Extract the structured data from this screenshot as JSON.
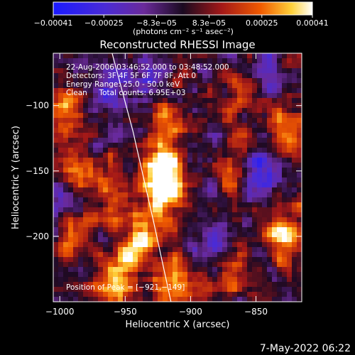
{
  "chart_data": {
    "type": "heatmap",
    "title": "Reconstructed RHESSI Image",
    "xlabel": "Heliocentric X (arcsec)",
    "ylabel": "Heliocentric Y (arcsec)",
    "xlim": [
      -1005,
      -815
    ],
    "ylim": [
      -250,
      -60
    ],
    "x_ticks": [
      {
        "value": -1000,
        "label": "−1000"
      },
      {
        "value": -950,
        "label": "−950"
      },
      {
        "value": -900,
        "label": "−900"
      },
      {
        "value": -850,
        "label": "−850"
      }
    ],
    "y_ticks": [
      {
        "value": -100,
        "label": "−100"
      },
      {
        "value": -150,
        "label": "−150"
      },
      {
        "value": -200,
        "label": "−200"
      }
    ],
    "colorbar": {
      "range": [
        -0.00041,
        0.00041
      ],
      "ticks": [
        {
          "value": -0.00041,
          "label": "−0.00041"
        },
        {
          "value": -0.00025,
          "label": "−0.00025"
        },
        {
          "value": -8.3e-05,
          "label": "−8.3e−05"
        },
        {
          "value": 8.3e-05,
          "label": "8.3e−05"
        },
        {
          "value": 0.00025,
          "label": "0.00025"
        },
        {
          "value": 0.00041,
          "label": "0.00041"
        }
      ],
      "unit_label": "(photons cm⁻² s⁻¹ asec⁻²)"
    },
    "annotations": [
      "22-Aug-2006 03:46:52.000 to 03:48:52.000",
      "Detectors: 3F 4F 5F 6F 7F 8F, Att 0",
      "Energy Range: 25.0 - 50.0 keV",
      "Clean     Total counts: 6.95E+03"
    ],
    "peak_label": "Position of Peak = [−921,−149]",
    "peak": [
      -921,
      -149
    ],
    "limb": [
      [
        -960,
        -60
      ],
      [
        -944,
        -120
      ],
      [
        -928,
        -190
      ],
      [
        -915,
        -250
      ]
    ],
    "hot_spots": [
      {
        "x": -921,
        "y": -149,
        "v": 1.0
      },
      {
        "x": -925,
        "y": -168,
        "v": 0.85
      },
      {
        "x": -918,
        "y": -110,
        "v": 0.7
      },
      {
        "x": -938,
        "y": -205,
        "v": 0.75
      },
      {
        "x": -912,
        "y": -238,
        "v": 0.85
      },
      {
        "x": -955,
        "y": -232,
        "v": 0.8
      },
      {
        "x": -995,
        "y": -110,
        "v": 0.7
      },
      {
        "x": -985,
        "y": -150,
        "v": 0.6
      },
      {
        "x": -990,
        "y": -200,
        "v": 0.55
      },
      {
        "x": -855,
        "y": -90,
        "v": 0.55
      },
      {
        "x": -825,
        "y": -120,
        "v": 0.7
      },
      {
        "x": -830,
        "y": -200,
        "v": 0.85
      },
      {
        "x": -868,
        "y": -150,
        "v": 0.5
      },
      {
        "x": -870,
        "y": -225,
        "v": 0.55
      },
      {
        "x": -960,
        "y": -175,
        "v": 0.5
      }
    ],
    "cold_spots": [
      {
        "x": -965,
        "y": -90,
        "v": -0.7
      },
      {
        "x": -845,
        "y": -150,
        "v": -0.8
      },
      {
        "x": -930,
        "y": -75,
        "v": -0.6
      },
      {
        "x": -1000,
        "y": -170,
        "v": -0.5
      },
      {
        "x": -885,
        "y": -200,
        "v": -0.5
      },
      {
        "x": -840,
        "y": -75,
        "v": -0.55
      }
    ]
  },
  "footer": {
    "timestamp": "7-May-2022 06:22"
  }
}
